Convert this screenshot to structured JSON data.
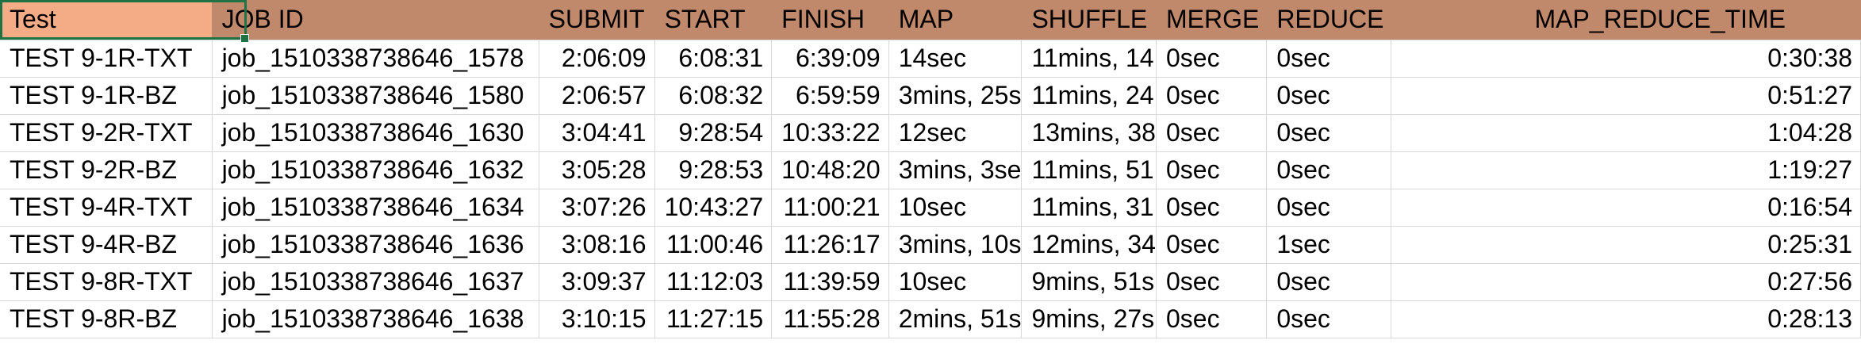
{
  "columns": [
    "Test",
    "JOB ID",
    "SUBMIT",
    "START",
    "FINISH",
    "MAP",
    "SHUFFLE",
    "MERGE",
    "REDUCE",
    "MAP_REDUCE_TIME"
  ],
  "rows": [
    [
      "TEST 9-1R-TXT",
      "job_1510338738646_1578",
      "2:06:09",
      "6:08:31",
      "6:39:09",
      "14sec",
      "11mins, 14",
      "0sec",
      "0sec",
      "0:30:38"
    ],
    [
      "TEST 9-1R-BZ",
      "job_1510338738646_1580",
      "2:06:57",
      "6:08:32",
      "6:59:59",
      "3mins, 25s",
      "11mins, 24",
      "0sec",
      "0sec",
      "0:51:27"
    ],
    [
      "TEST 9-2R-TXT",
      "job_1510338738646_1630",
      "3:04:41",
      "9:28:54",
      "10:33:22",
      "12sec",
      "13mins, 38",
      "0sec",
      "0sec",
      "1:04:28"
    ],
    [
      "TEST 9-2R-BZ",
      "job_1510338738646_1632",
      "3:05:28",
      "9:28:53",
      "10:48:20",
      "3mins, 3se",
      "11mins, 51",
      "0sec",
      "0sec",
      "1:19:27"
    ],
    [
      "TEST 9-4R-TXT",
      "job_1510338738646_1634",
      "3:07:26",
      "10:43:27",
      "11:00:21",
      "10sec",
      "11mins, 31",
      "0sec",
      "0sec",
      "0:16:54"
    ],
    [
      "TEST 9-4R-BZ",
      "job_1510338738646_1636",
      "3:08:16",
      "11:00:46",
      "11:26:17",
      "3mins, 10s",
      "12mins, 34",
      "0sec",
      "1sec",
      "0:25:31"
    ],
    [
      "TEST 9-8R-TXT",
      "job_1510338738646_1637",
      "3:09:37",
      "11:12:03",
      "11:39:59",
      "10sec",
      "9mins, 51s",
      "0sec",
      "0sec",
      "0:27:56"
    ],
    [
      "TEST 9-8R-BZ",
      "job_1510338738646_1638",
      "3:10:15",
      "11:27:15",
      "11:55:28",
      "2mins, 51s",
      "9mins, 27s",
      "0sec",
      "0sec",
      "0:28:13"
    ]
  ],
  "colors": {
    "header_first": "#f3ac86",
    "header": "#c0896b",
    "selection": "#1f7244",
    "gridline": "#d9d9d9"
  }
}
